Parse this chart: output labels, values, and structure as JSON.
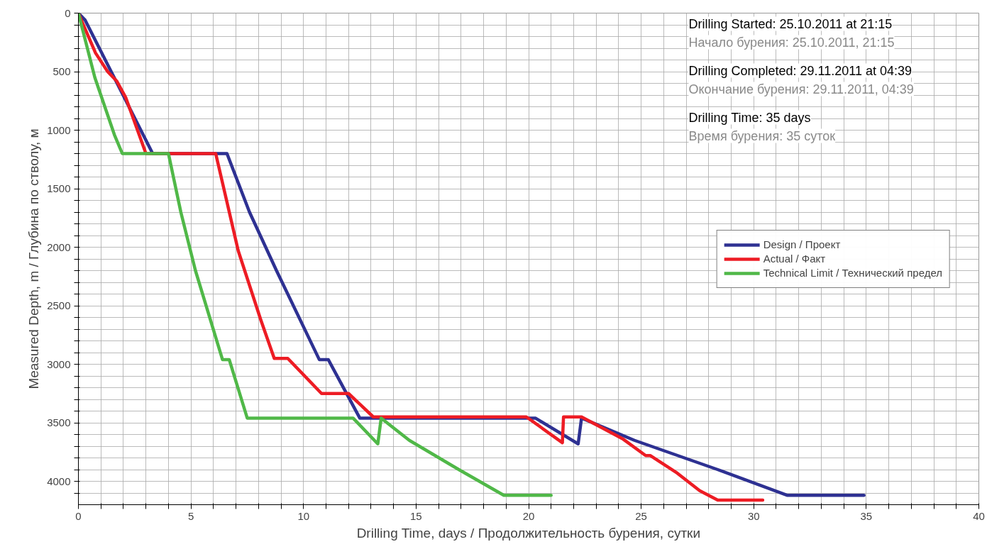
{
  "chart_data": {
    "type": "line",
    "xlabel": "Drilling Time, days / Продолжительность бурения, сутки",
    "ylabel": "Measured Depth, m / Глубина по стволу, м",
    "xlim": [
      0,
      40
    ],
    "ylim": [
      4200,
      0
    ],
    "xticks": [
      0,
      {
        "value": 1,
        "label": null
      },
      {
        "value": 2,
        "label": null
      },
      {
        "value": 3,
        "label": null
      },
      {
        "value": 4,
        "label": null
      },
      5,
      {
        "value": 6,
        "label": null
      },
      {
        "value": 7,
        "label": null
      },
      {
        "value": 8,
        "label": null
      },
      {
        "value": 9,
        "label": null
      },
      10,
      {
        "value": 11,
        "label": null
      },
      {
        "value": 12,
        "label": null
      },
      {
        "value": 13,
        "label": null
      },
      {
        "value": 14,
        "label": null
      },
      15,
      {
        "value": 16,
        "label": null
      },
      {
        "value": 17,
        "label": null
      },
      {
        "value": 18,
        "label": null
      },
      {
        "value": 19,
        "label": null
      },
      20,
      {
        "value": 21,
        "label": null
      },
      {
        "value": 22,
        "label": null
      },
      {
        "value": 23,
        "label": null
      },
      {
        "value": 24,
        "label": null
      },
      25,
      {
        "value": 26,
        "label": null
      },
      {
        "value": 27,
        "label": null
      },
      {
        "value": 28,
        "label": null
      },
      {
        "value": 29,
        "label": null
      },
      30,
      {
        "value": 31,
        "label": null
      },
      {
        "value": 32,
        "label": null
      },
      {
        "value": 33,
        "label": null
      },
      {
        "value": 34,
        "label": null
      },
      35,
      {
        "value": 36,
        "label": null
      },
      {
        "value": 37,
        "label": null
      },
      {
        "value": 38,
        "label": null
      },
      {
        "value": 39,
        "label": null
      },
      40
    ],
    "yticks": [
      0,
      {
        "value": 100,
        "label": null
      },
      {
        "value": 200,
        "label": null
      },
      {
        "value": 300,
        "label": null
      },
      {
        "value": 400,
        "label": null
      },
      500,
      {
        "value": 600,
        "label": null
      },
      {
        "value": 700,
        "label": null
      },
      {
        "value": 800,
        "label": null
      },
      {
        "value": 900,
        "label": null
      },
      1000,
      {
        "value": 1100,
        "label": null
      },
      {
        "value": 1200,
        "label": null
      },
      {
        "value": 1300,
        "label": null
      },
      {
        "value": 1400,
        "label": null
      },
      1500,
      {
        "value": 1600,
        "label": null
      },
      {
        "value": 1700,
        "label": null
      },
      {
        "value": 1800,
        "label": null
      },
      {
        "value": 1900,
        "label": null
      },
      2000,
      {
        "value": 2100,
        "label": null
      },
      {
        "value": 2200,
        "label": null
      },
      {
        "value": 2300,
        "label": null
      },
      {
        "value": 2400,
        "label": null
      },
      2500,
      {
        "value": 2600,
        "label": null
      },
      {
        "value": 2700,
        "label": null
      },
      {
        "value": 2800,
        "label": null
      },
      {
        "value": 2900,
        "label": null
      },
      3000,
      {
        "value": 3100,
        "label": null
      },
      {
        "value": 3200,
        "label": null
      },
      {
        "value": 3300,
        "label": null
      },
      {
        "value": 3400,
        "label": null
      },
      3500,
      {
        "value": 3600,
        "label": null
      },
      {
        "value": 3700,
        "label": null
      },
      {
        "value": 3800,
        "label": null
      },
      {
        "value": 3900,
        "label": null
      },
      4000,
      {
        "value": 4100,
        "label": null
      }
    ],
    "grid": true,
    "legend": "right",
    "line_style": "solid",
    "marker": "none",
    "annotations": [
      "Drilling Started: 25.10.2011 at 21:15",
      "Начало бурения: 25.10.2011, 21:15",
      "Drilling Completed: 29.11.2011 at 04:39",
      "Окончание бурения: 29.11.2011, 04:39",
      "Drilling Time: 35 days",
      "Время бурения: 35 суток"
    ],
    "series": [
      {
        "name": "Design / Проект",
        "color": "#2e3192",
        "x": [
          0,
          0.3,
          3.3,
          6.6,
          7.6,
          8.8,
          10.7,
          11.1,
          12.5,
          20.3,
          22.2,
          22.35,
          24.7,
          28.4,
          31.5,
          34.9
        ],
        "values": [
          0,
          60,
          1200,
          1200,
          1700,
          2200,
          2960,
          2960,
          3460,
          3460,
          3680,
          3460,
          3650,
          3900,
          4120,
          4120
        ]
      },
      {
        "name": "Actual / Факт",
        "color": "#ed1c24",
        "x": [
          0,
          0.13,
          0.76,
          1.3,
          1.7,
          2.1,
          3.0,
          6.1,
          7.1,
          8.1,
          8.7,
          9.3,
          10.8,
          12.0,
          13.1,
          19.9,
          21.5,
          21.55,
          22.35,
          24.2,
          25.2,
          25.4,
          26.6,
          27.6,
          28.4,
          30.4
        ],
        "values": [
          0,
          60,
          340,
          500,
          580,
          720,
          1200,
          1200,
          2030,
          2620,
          2950,
          2950,
          3250,
          3250,
          3450,
          3450,
          3670,
          3450,
          3450,
          3640,
          3780,
          3780,
          3930,
          4080,
          4160,
          4160
        ]
      },
      {
        "name": "Technical Limit / Технический предел",
        "color": "#50b848",
        "x": [
          0,
          0.73,
          1.6,
          1.95,
          4.0,
          4.55,
          5.2,
          6.4,
          6.7,
          7.5,
          12.2,
          13.3,
          13.45,
          14.7,
          16.9,
          18.9,
          21.0
        ],
        "values": [
          0,
          550,
          1040,
          1200,
          1200,
          1700,
          2200,
          2960,
          2960,
          3460,
          3460,
          3680,
          3460,
          3650,
          3900,
          4120,
          4120
        ]
      }
    ]
  }
}
